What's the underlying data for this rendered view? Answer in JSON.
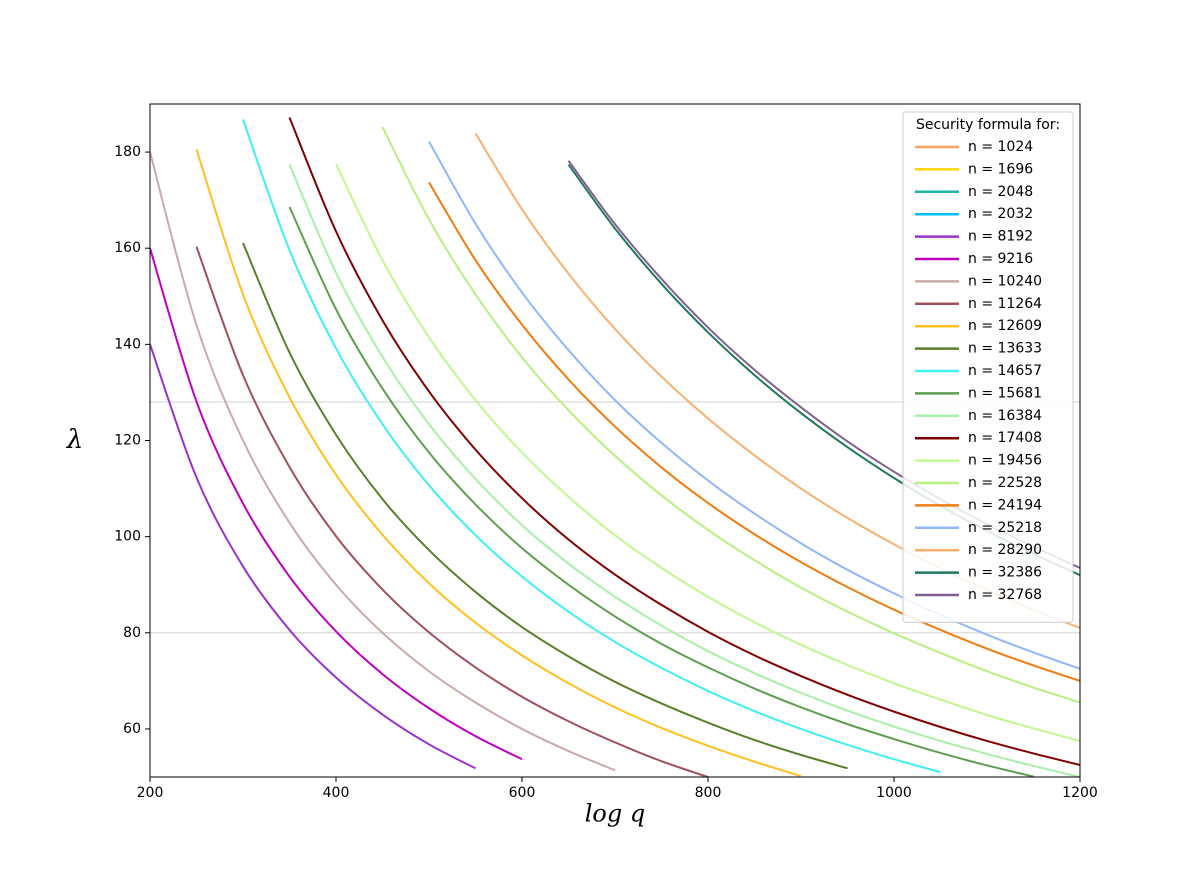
{
  "chart_data": {
    "type": "line",
    "xlabel": "log q",
    "ylabel": "λ",
    "legend_title": "Security formula for:",
    "legend": "upper right",
    "grid": false,
    "hlines": [
      80,
      128
    ],
    "xlim": [
      200,
      1200
    ],
    "ylim": [
      50,
      190
    ],
    "xticks": [
      200,
      400,
      600,
      800,
      1000,
      1200
    ],
    "yticks": [
      60,
      80,
      100,
      120,
      140,
      160,
      180
    ],
    "x": [
      200,
      250,
      300,
      350,
      400,
      450,
      500,
      550,
      600,
      650,
      700,
      750,
      800,
      850,
      900,
      950,
      1000,
      1050,
      1100,
      1150,
      1200
    ],
    "series": [
      {
        "name": "n = 1024",
        "color": "#f4a460",
        "values": [
          null,
          null,
          null,
          null,
          null,
          null,
          null,
          null,
          null,
          null,
          null,
          null,
          null,
          null,
          null,
          null,
          null,
          null,
          null,
          null,
          null
        ]
      },
      {
        "name": "n = 1696",
        "color": "#ffd700",
        "values": [
          null,
          null,
          null,
          null,
          null,
          null,
          null,
          null,
          null,
          null,
          null,
          null,
          null,
          null,
          null,
          null,
          null,
          null,
          null,
          null,
          null
        ]
      },
      {
        "name": "n = 2048",
        "color": "#20b2aa",
        "values": [
          null,
          null,
          null,
          null,
          null,
          null,
          null,
          null,
          null,
          null,
          null,
          null,
          null,
          null,
          null,
          null,
          null,
          null,
          null,
          null,
          null
        ]
      },
      {
        "name": "n = 2032",
        "color": "#00bfff",
        "values": [
          null,
          null,
          null,
          null,
          null,
          null,
          null,
          null,
          null,
          null,
          null,
          null,
          null,
          null,
          null,
          null,
          null,
          null,
          null,
          null,
          null
        ]
      },
      {
        "name": "n = 8192",
        "color": "#9932cc",
        "values": [
          140.0,
          112.3,
          93.8,
          80.6,
          70.7,
          63.0,
          56.8,
          51.8,
          null,
          null,
          null,
          null,
          null,
          null,
          null,
          null,
          null,
          null,
          null,
          null,
          null
        ]
      },
      {
        "name": "n = 9216",
        "color": "#c000c0",
        "values": [
          160.0,
          128.1,
          106.9,
          91.7,
          80.3,
          71.4,
          64.3,
          58.5,
          53.7,
          null,
          null,
          null,
          null,
          null,
          null,
          null,
          null,
          null,
          null,
          null,
          null
        ]
      },
      {
        "name": "n = 10240",
        "color": "#c8aaa8",
        "values": [
          180,
          144,
          120,
          102.9,
          90,
          80,
          72,
          65.5,
          60,
          55.4,
          51.4,
          null,
          null,
          null,
          null,
          null,
          null,
          null,
          null,
          null,
          null
        ]
      },
      {
        "name": "n = 11264",
        "color": "#a0505a",
        "values": [
          null,
          160.3,
          133.6,
          114.5,
          100.1,
          89.0,
          80.1,
          72.8,
          66.7,
          61.6,
          57.2,
          53.3,
          50,
          null,
          null,
          null,
          null,
          null,
          null,
          null,
          null
        ]
      },
      {
        "name": "n = 12609",
        "color": "#ffc020",
        "values": [
          null,
          180.6,
          150.4,
          129.0,
          112.9,
          100.4,
          90.3,
          82.1,
          75.3,
          69.5,
          64.5,
          60.2,
          56.5,
          53.2,
          50.2,
          null,
          null,
          null,
          null,
          null,
          null
        ]
      },
      {
        "name": "n = 13633",
        "color": "#5a7f2a",
        "values": [
          null,
          null,
          161.1,
          138.3,
          121.2,
          107.8,
          97.2,
          88.5,
          81.2,
          75.1,
          69.8,
          65.3,
          61.3,
          57.7,
          54.6,
          51.8,
          null,
          null,
          null,
          null,
          null
        ]
      },
      {
        "name": "n = 14657",
        "color": "#40f0f0",
        "values": [
          null,
          null,
          186.8,
          159.6,
          139.2,
          123.4,
          110.7,
          100.3,
          91.7,
          84.4,
          78.1,
          72.7,
          67.9,
          63.7,
          60.0,
          56.7,
          53.7,
          51.0,
          null,
          null,
          null
        ]
      },
      {
        "name": "n = 15681",
        "color": "#5e9e4e",
        "values": [
          null,
          null,
          null,
          168.6,
          147.3,
          130.8,
          117.5,
          106.7,
          97.6,
          90.0,
          83.4,
          77.7,
          72.8,
          68.4,
          64.5,
          61.0,
          57.9,
          55.0,
          52.4,
          50.1,
          null
        ]
      },
      {
        "name": "n = 16384",
        "color": "#a8f0a8",
        "values": [
          null,
          null,
          null,
          177.4,
          154.9,
          137.4,
          123.4,
          112.0,
          102.4,
          94.4,
          87.5,
          81.5,
          76.2,
          71.6,
          67.5,
          63.8,
          60.5,
          57.5,
          54.8,
          52.3,
          50.0
        ]
      },
      {
        "name": "n = 17408",
        "color": "#800000",
        "values": [
          null,
          null,
          null,
          187.2,
          163.5,
          145.0,
          130.2,
          118.1,
          108.0,
          99.4,
          92.1,
          85.8,
          80.2,
          75.3,
          71.0,
          67.1,
          63.6,
          60.4,
          57.5,
          54.9,
          52.5
        ]
      },
      {
        "name": "n = 19456",
        "color": "#c0f890",
        "values": [
          null,
          null,
          null,
          null,
          177.5,
          157.5,
          141.5,
          128.4,
          117.5,
          108.3,
          100.3,
          93.5,
          87.5,
          82.2,
          77.5,
          73.3,
          69.5,
          66.1,
          62.9,
          60.1,
          57.5
        ]
      },
      {
        "name": "n = 22528",
        "color": "#b8f080",
        "values": [
          null,
          null,
          null,
          null,
          null,
          185.2,
          166.0,
          150.4,
          137.3,
          126.3,
          116.8,
          108.6,
          101.4,
          95.1,
          89.4,
          84.4,
          79.9,
          75.8,
          72.0,
          68.6,
          65.5
        ]
      },
      {
        "name": "n = 24194",
        "color": "#f07c10",
        "values": [
          null,
          null,
          null,
          null,
          null,
          null,
          173.7,
          157.5,
          144.1,
          132.7,
          122.9,
          114.4,
          107.0,
          100.5,
          94.7,
          89.5,
          84.8,
          80.6,
          76.7,
          73.2,
          70
        ]
      },
      {
        "name": "n = 25218",
        "color": "#90b8f8",
        "values": [
          null,
          null,
          null,
          null,
          null,
          null,
          182.2,
          165.1,
          150.8,
          138.8,
          128.4,
          119.5,
          111.7,
          104.8,
          98.6,
          93.1,
          88.2,
          83.7,
          79.6,
          75.9,
          72.5
        ]
      },
      {
        "name": "n = 28290",
        "color": "#f8b070",
        "values": [
          null,
          null,
          null,
          null,
          null,
          null,
          null,
          183.9,
          168.1,
          154.7,
          143.2,
          133.3,
          124.6,
          116.9,
          110.0,
          103.9,
          98.4,
          93.4,
          88.9,
          84.8,
          81
        ]
      },
      {
        "name": "n = 32386",
        "color": "#1e7a5a",
        "values": [
          null,
          null,
          null,
          null,
          null,
          null,
          null,
          null,
          null,
          177.4,
          164.1,
          152.6,
          142.5,
          133.6,
          125.7,
          118.6,
          112.2,
          106.4,
          101.2,
          96.4,
          92
        ]
      },
      {
        "name": "n = 32768",
        "color": "#806090",
        "values": [
          null,
          null,
          null,
          null,
          null,
          null,
          null,
          null,
          null,
          178.2,
          165.0,
          153.6,
          143.5,
          134.7,
          126.9,
          119.8,
          113.5,
          107.8,
          102.6,
          97.9,
          93.5
        ]
      }
    ]
  }
}
